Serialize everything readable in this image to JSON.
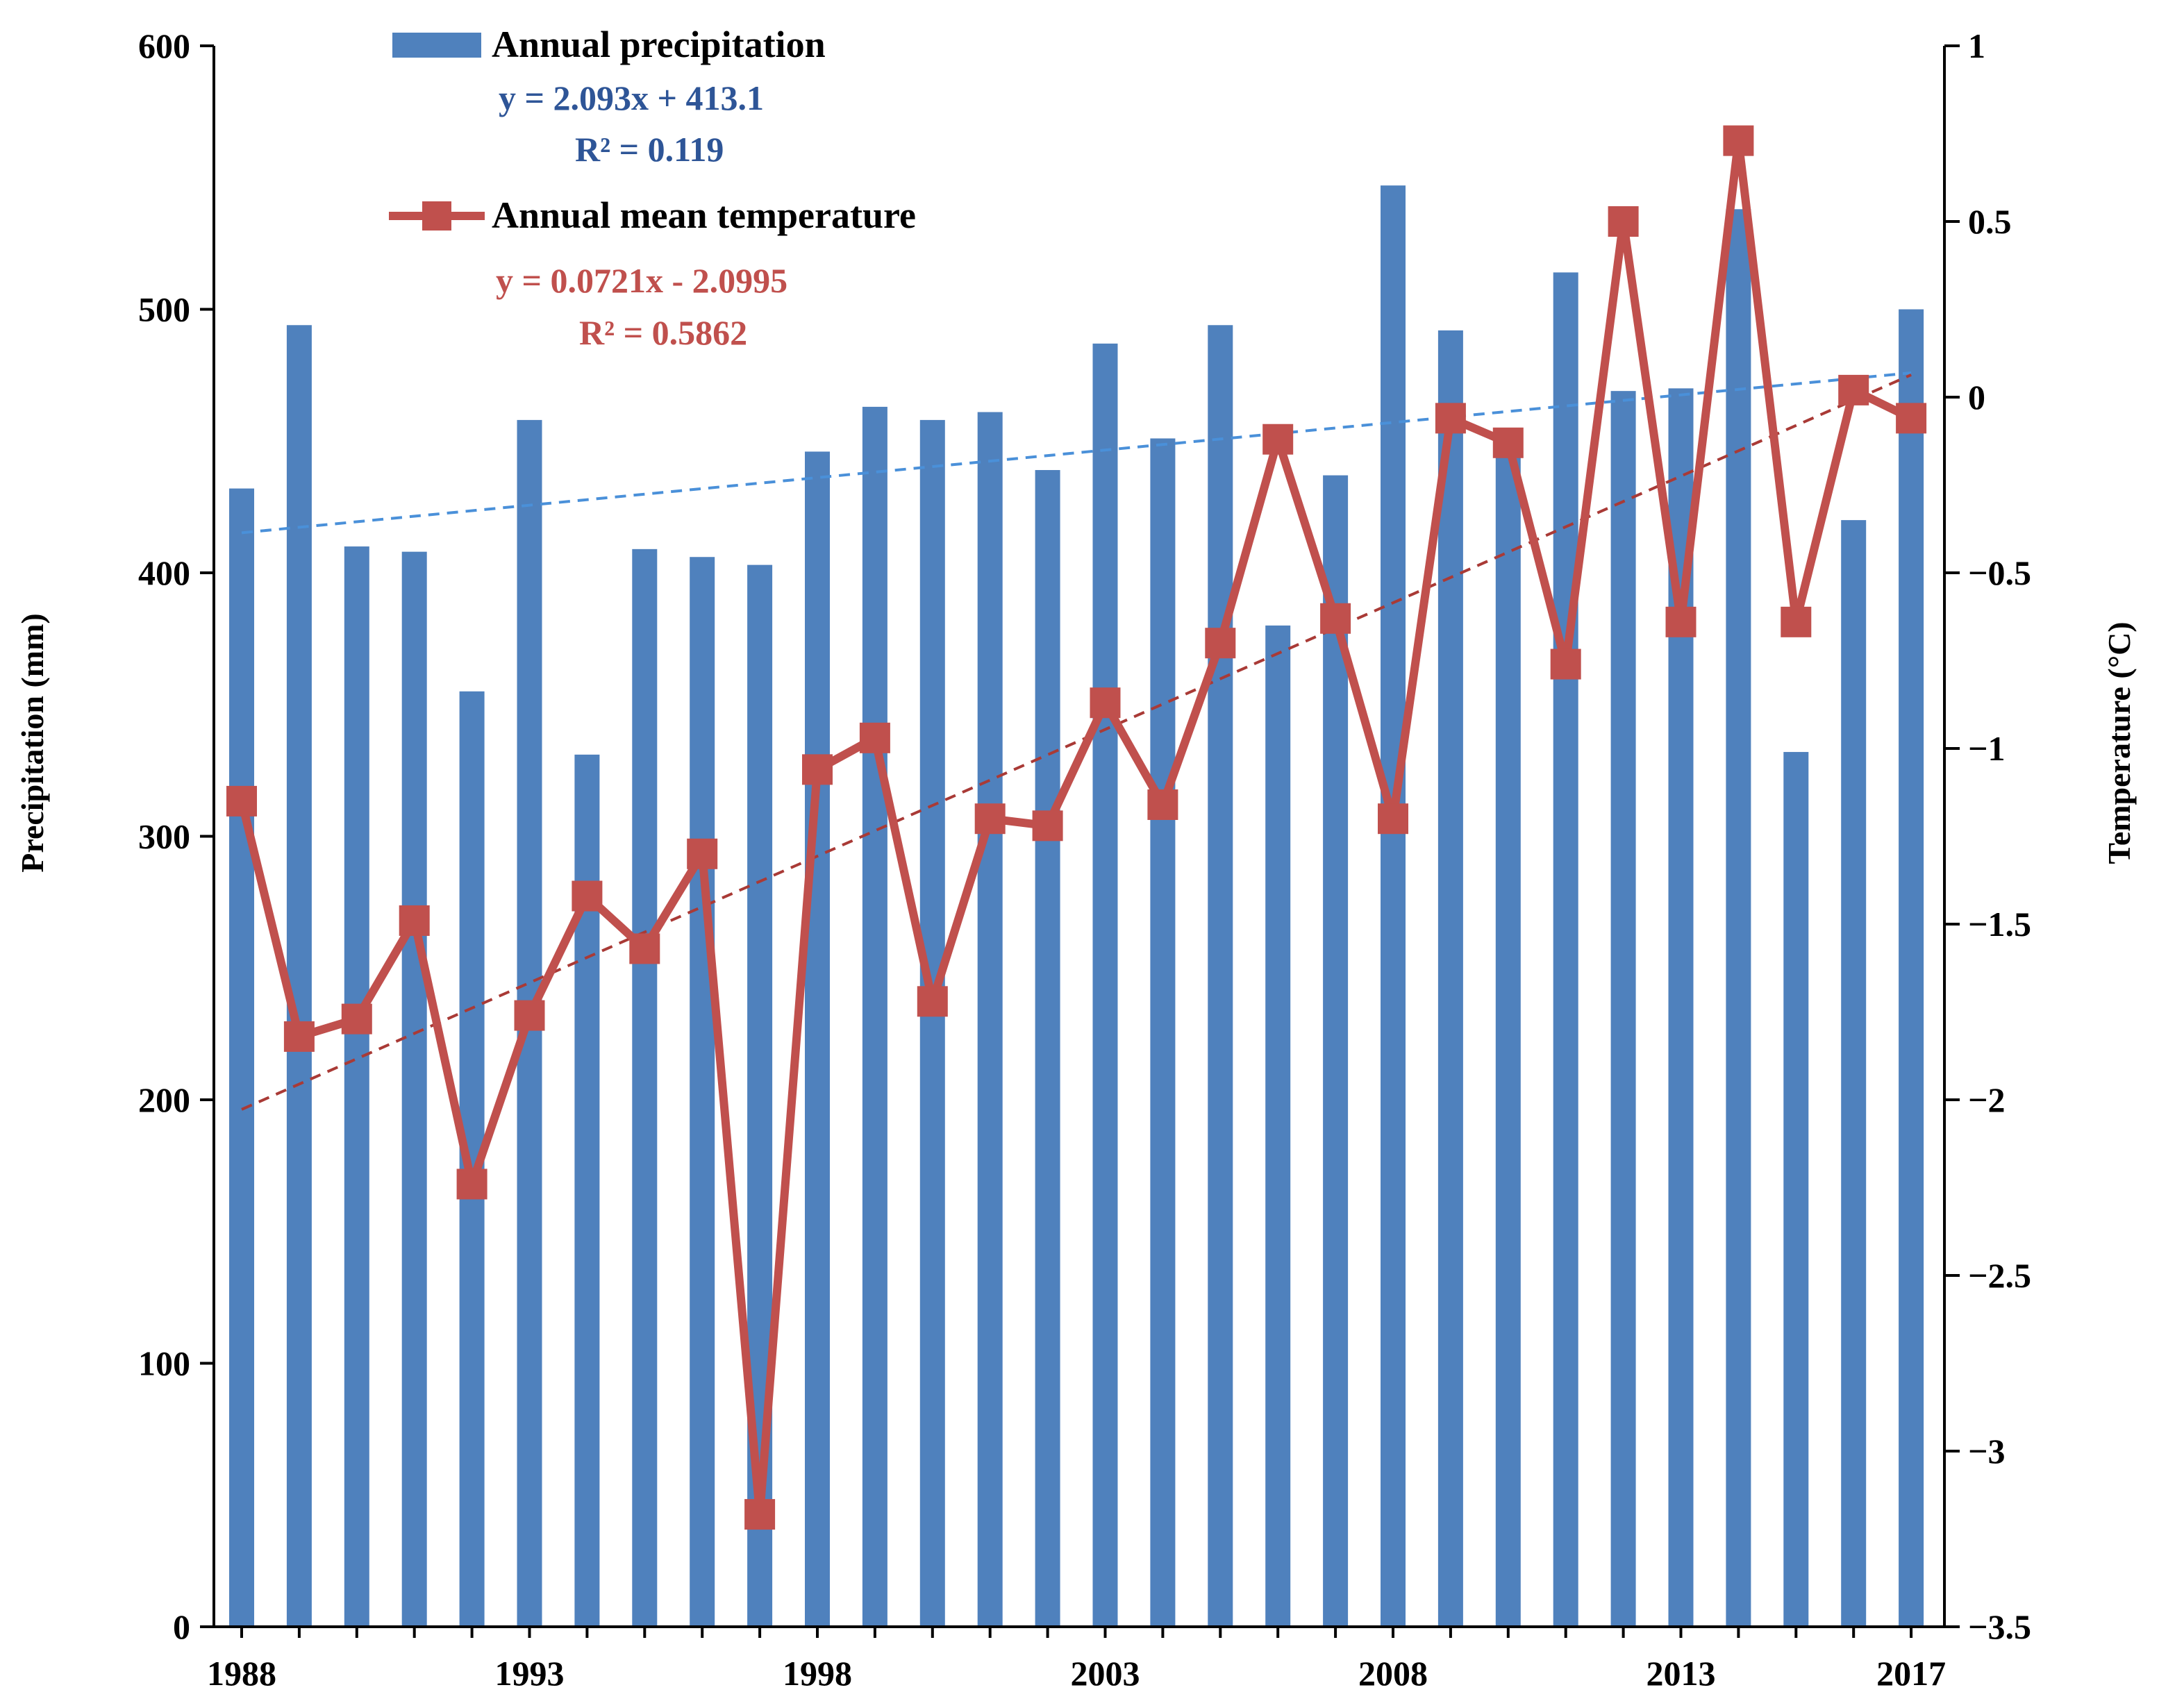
{
  "chart_data": {
    "type": "bar+line",
    "title": "",
    "categories": [
      1988,
      1989,
      1990,
      1991,
      1992,
      1993,
      1994,
      1995,
      1996,
      1997,
      1998,
      1999,
      2000,
      2001,
      2002,
      2003,
      2004,
      2005,
      2006,
      2007,
      2008,
      2009,
      2010,
      2011,
      2012,
      2013,
      2014,
      2015,
      2016,
      2017
    ],
    "x_tick_labels": [
      "1988",
      "1993",
      "1998",
      "2003",
      "2008",
      "2013",
      "2017"
    ],
    "precipitation": {
      "name": "Annual precipitation",
      "axis": "left",
      "unit": "mm",
      "color": "#4f81bd",
      "values": [
        432,
        494,
        410,
        408,
        355,
        458,
        331,
        409,
        406,
        403,
        446,
        463,
        458,
        461,
        439,
        487,
        451,
        494,
        380,
        437,
        547,
        492,
        450,
        514,
        469,
        470,
        538,
        332,
        420,
        500
      ]
    },
    "temperature": {
      "name": "Annual mean temperature",
      "axis": "right",
      "unit": "°C",
      "color": "#c0504d",
      "values": [
        -1.15,
        -1.82,
        -1.77,
        -1.49,
        -2.24,
        -1.76,
        -1.42,
        -1.57,
        -1.3,
        -3.18,
        -1.06,
        -0.97,
        -1.72,
        -1.2,
        -1.22,
        -0.87,
        -1.16,
        -0.7,
        -0.12,
        -0.63,
        -1.2,
        -0.06,
        -0.13,
        -0.76,
        0.5,
        -0.64,
        0.73,
        -0.64,
        0.02,
        -0.06
      ]
    },
    "precip_trend": {
      "equation": "y = 2.093x + 413.1",
      "r2": "R² = 0.119",
      "slope": 2.093,
      "intercept": 413.1,
      "color": "#4a90d9"
    },
    "temp_trend": {
      "equation": "y = 0.0721x - 2.0995",
      "r2": "R² = 0.5862",
      "slope": 0.0721,
      "intercept": -2.0995,
      "color": "#c0504d"
    },
    "left_axis": {
      "label": "Precipitation (mm)",
      "ylim": [
        0,
        600
      ],
      "ticks": [
        "0",
        "100",
        "200",
        "300",
        "400",
        "500",
        "600"
      ]
    },
    "right_axis": {
      "label": "Temperature (°C)",
      "ylim": [
        -3.5,
        1
      ],
      "ticks": [
        "−3.5",
        "−3",
        "−2.5",
        "−2",
        "−1.5",
        "−1",
        "−0.5",
        "0",
        "0.5",
        "1"
      ]
    },
    "legend_placement": "top-left"
  }
}
